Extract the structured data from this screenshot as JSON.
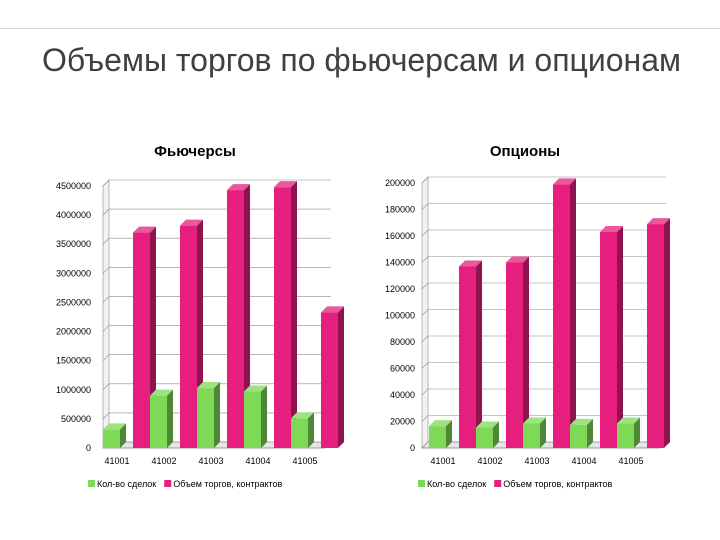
{
  "slide": {
    "title": "Объемы торгов по фьючерсам и опционам"
  },
  "colors": {
    "series1": "#7ed957",
    "series2": "#e61e7e"
  },
  "chart_data": [
    {
      "type": "bar",
      "title": "Фьючерсы",
      "categories": [
        "41001",
        "41002",
        "41003",
        "41004",
        "41005"
      ],
      "ylim": [
        0,
        4500000
      ],
      "yticks": [
        "0",
        "500000",
        "1000000",
        "1500000",
        "2000000",
        "2500000",
        "3000000",
        "3500000",
        "4000000",
        "4500000"
      ],
      "grid": true,
      "legend": "bottom",
      "series": [
        {
          "name": "Кол-во сделок",
          "values": [
            320000,
            900000,
            1030000,
            970000,
            510000
          ]
        },
        {
          "name": "Объем торгов, контрактов",
          "values": [
            3700000,
            3820000,
            4430000,
            4480000,
            2330000
          ]
        }
      ]
    },
    {
      "type": "bar",
      "title": "Опционы",
      "categories": [
        "41001",
        "41002",
        "41003",
        "41004",
        "41005"
      ],
      "ylim": [
        0,
        200000
      ],
      "yticks": [
        "0",
        "20000",
        "40000",
        "60000",
        "80000",
        "100000",
        "120000",
        "140000",
        "160000",
        "180000",
        "200000"
      ],
      "grid": true,
      "legend": "bottom",
      "series": [
        {
          "name": "Кол-во сделок",
          "values": [
            16500,
            15500,
            18500,
            17500,
            18500
          ]
        },
        {
          "name": "Объем торгов, контрактов",
          "values": [
            137000,
            140000,
            199000,
            163000,
            169000
          ]
        }
      ]
    }
  ]
}
